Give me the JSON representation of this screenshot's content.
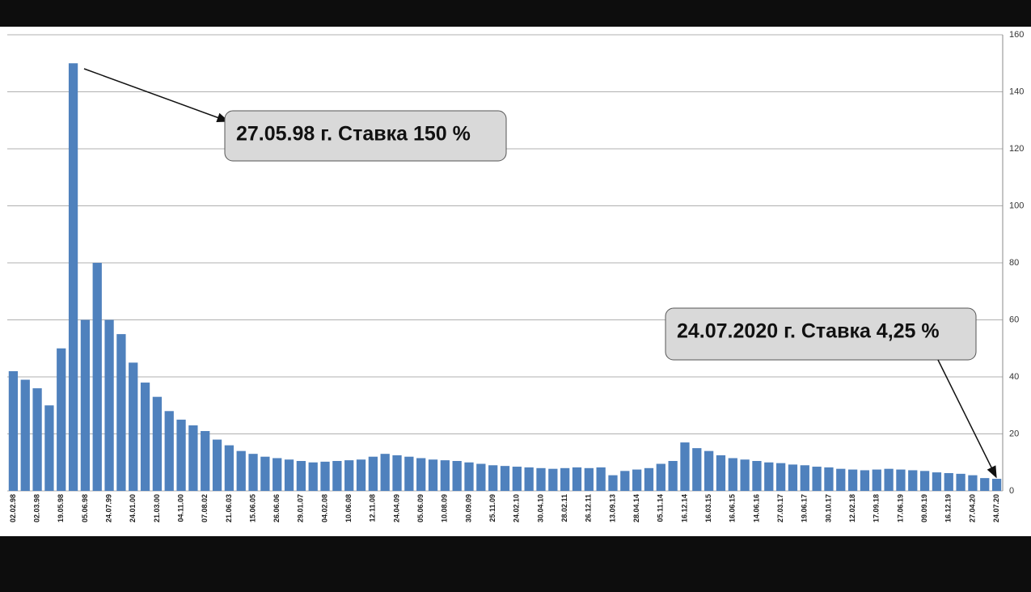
{
  "chart_data": {
    "type": "bar",
    "categories": [
      "02.02.98",
      null,
      "02.03.98",
      null,
      "19.05.98",
      null,
      "05.06.98",
      null,
      "24.07.99",
      null,
      "24.01.00",
      null,
      "21.03.00",
      null,
      "04.11.00",
      null,
      "07.08.02",
      null,
      "21.06.03",
      null,
      "15.06.05",
      null,
      "26.06.06",
      null,
      "29.01.07",
      null,
      "04.02.08",
      null,
      "10.06.08",
      null,
      "12.11.08",
      null,
      "24.04.09",
      null,
      "05.06.09",
      null,
      "10.08.09",
      null,
      "30.09.09",
      null,
      "25.11.09",
      null,
      "24.02.10",
      null,
      "30.04.10",
      null,
      "28.02.11",
      null,
      "26.12.11",
      null,
      "13.09.13",
      null,
      "28.04.14",
      null,
      "05.11.14",
      null,
      "16.12.14",
      null,
      "16.03.15",
      null,
      "16.06.15",
      null,
      "14.06.16",
      null,
      "27.03.17",
      null,
      "19.06.17",
      null,
      "30.10.17",
      null,
      "12.02.18",
      null,
      "17.09.18",
      null,
      "17.06.19",
      null,
      "09.09.19",
      null,
      "16.12.19",
      null,
      "27.04.20",
      null,
      "24.07.20"
    ],
    "values": [
      42,
      39,
      36,
      30,
      50,
      150,
      60,
      80,
      60,
      55,
      45,
      38,
      33,
      28,
      25,
      23,
      21,
      18,
      16,
      14,
      13,
      12,
      11.5,
      11,
      10.5,
      10,
      10.25,
      10.5,
      10.75,
      11,
      12,
      13,
      12.5,
      12,
      11.5,
      11,
      10.75,
      10.5,
      10,
      9.5,
      9,
      8.75,
      8.5,
      8.25,
      8,
      7.75,
      8,
      8.25,
      8,
      8.25,
      5.5,
      7,
      7.5,
      8,
      9.5,
      10.5,
      17,
      15,
      14,
      12.5,
      11.5,
      11,
      10.5,
      10,
      9.75,
      9.25,
      9,
      8.5,
      8.25,
      7.75,
      7.5,
      7.25,
      7.5,
      7.75,
      7.5,
      7.25,
      7,
      6.5,
      6.25,
      6,
      5.5,
      4.5,
      4.25
    ],
    "color": "#4f81bd",
    "ylim": [
      0,
      160
    ],
    "yticks": [
      0,
      20,
      40,
      60,
      80,
      100,
      120,
      140,
      160
    ],
    "grid": true,
    "annotations": [
      "27.05.98 г. Ставка 150 %",
      "24.07.2020 г. Ставка 4,25 %"
    ]
  }
}
